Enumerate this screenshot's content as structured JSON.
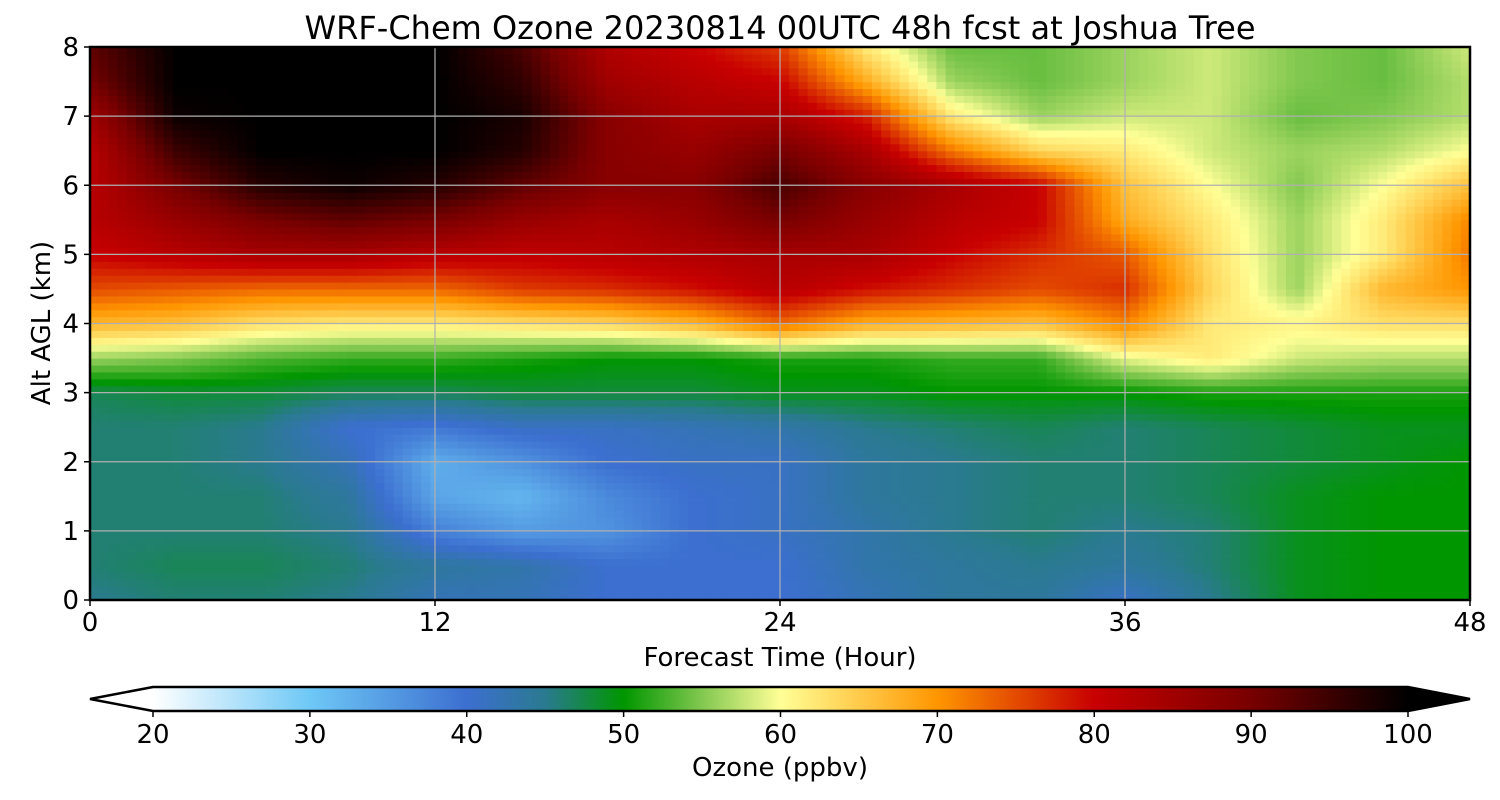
{
  "chart_data": {
    "type": "heatmap",
    "title": "WRF-Chem Ozone  20230814 00UTC 48h fcst at Joshua Tree",
    "xlabel": "Forecast Time (Hour)",
    "ylabel": "Alt AGL (km)",
    "xlim": [
      0,
      48
    ],
    "ylim": [
      0,
      8
    ],
    "xticks": [
      0,
      12,
      24,
      36,
      48
    ],
    "yticks": [
      0,
      1,
      2,
      3,
      4,
      5,
      6,
      7,
      8
    ],
    "grid": true,
    "colorbar": {
      "label": "Ozone  (ppbv)",
      "min": 20,
      "max": 100,
      "ticks": [
        20,
        30,
        40,
        50,
        60,
        70,
        80,
        90,
        100
      ],
      "extend": "both",
      "stops": [
        {
          "v": 20,
          "c": "#ffffff"
        },
        {
          "v": 30,
          "c": "#6ec8f6"
        },
        {
          "v": 40,
          "c": "#3c6fd0"
        },
        {
          "v": 45,
          "c": "#2a7a90"
        },
        {
          "v": 50,
          "c": "#009600"
        },
        {
          "v": 55,
          "c": "#82c850"
        },
        {
          "v": 60,
          "c": "#ffff96"
        },
        {
          "v": 70,
          "c": "#ff9600"
        },
        {
          "v": 80,
          "c": "#c80000"
        },
        {
          "v": 90,
          "c": "#780000"
        },
        {
          "v": 100,
          "c": "#000000"
        }
      ]
    },
    "x": [
      0,
      3,
      6,
      9,
      12,
      15,
      18,
      21,
      24,
      27,
      30,
      33,
      36,
      39,
      42,
      45,
      48
    ],
    "y": [
      0,
      0.5,
      1,
      1.5,
      2,
      2.5,
      3,
      3.5,
      4,
      4.5,
      5,
      5.5,
      6,
      6.5,
      7,
      7.5,
      8
    ],
    "z": [
      [
        45,
        46,
        46,
        45,
        42,
        42,
        40,
        40,
        40,
        42,
        44,
        44,
        41,
        45,
        49,
        50,
        50
      ],
      [
        46,
        47,
        47,
        46,
        44,
        43,
        40,
        40,
        40,
        43,
        44,
        45,
        44,
        46,
        49,
        50,
        50
      ],
      [
        46,
        46,
        46,
        45,
        38,
        35,
        36,
        40,
        41,
        43,
        45,
        46,
        45,
        46,
        49,
        50,
        50
      ],
      [
        46,
        46,
        46,
        44,
        34,
        32,
        37,
        40,
        41,
        44,
        45,
        46,
        46,
        47,
        49,
        50,
        50
      ],
      [
        46,
        46,
        45,
        42,
        33,
        36,
        40,
        41,
        41,
        44,
        45,
        46,
        46,
        47,
        48,
        49,
        50
      ],
      [
        46,
        46,
        45,
        40,
        39,
        41,
        41,
        42,
        43,
        45,
        46,
        47,
        46,
        47,
        48,
        49,
        49
      ],
      [
        47,
        48,
        48,
        47,
        47,
        48,
        48,
        48,
        49,
        49,
        50,
        50,
        50,
        51,
        51,
        51,
        51
      ],
      [
        56,
        55,
        53,
        52,
        52,
        51,
        50,
        50,
        51,
        51,
        52,
        52,
        59,
        62,
        58,
        57,
        57
      ],
      [
        67,
        66,
        63,
        62,
        62,
        63,
        64,
        67,
        73,
        68,
        67,
        66,
        71,
        62,
        61,
        63,
        63
      ],
      [
        75,
        74,
        73,
        73,
        73,
        76,
        77,
        79,
        82,
        79,
        77,
        75,
        77,
        64,
        56,
        67,
        70
      ],
      [
        80,
        82,
        84,
        84,
        82,
        81,
        82,
        83,
        84,
        84,
        80,
        77,
        74,
        63,
        56,
        62,
        72
      ],
      [
        82,
        86,
        90,
        92,
        90,
        86,
        84,
        86,
        90,
        86,
        82,
        80,
        68,
        62,
        56,
        62,
        71
      ],
      [
        82,
        90,
        97,
        99,
        97,
        92,
        88,
        88,
        94,
        88,
        84,
        80,
        66,
        60,
        55,
        60,
        66
      ],
      [
        82,
        95,
        100,
        100,
        100,
        97,
        88,
        86,
        90,
        84,
        72,
        64,
        62,
        58,
        56,
        57,
        60
      ],
      [
        85,
        99,
        100,
        100,
        100,
        98,
        88,
        84,
        84,
        78,
        62,
        56,
        58,
        58,
        54,
        55,
        57
      ],
      [
        90,
        100,
        100,
        100,
        100,
        96,
        85,
        82,
        80,
        68,
        56,
        54,
        56,
        58,
        55,
        54,
        57
      ],
      [
        92,
        100,
        100,
        100,
        100,
        94,
        83,
        80,
        76,
        62,
        54,
        54,
        56,
        58,
        55,
        54,
        58
      ]
    ]
  }
}
